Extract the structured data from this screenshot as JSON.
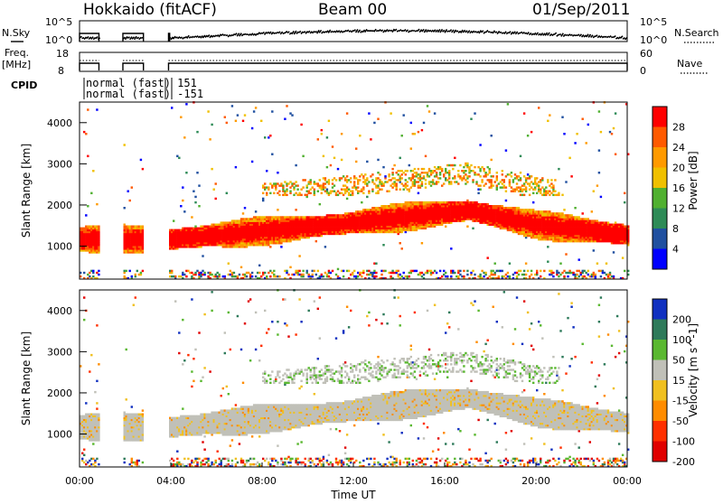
{
  "header": {
    "station": "Hokkaido (fitACF)",
    "beam": "Beam 00",
    "date": "01/Sep/2011"
  },
  "panels": {
    "nsky": {
      "left_label": "N.Sky",
      "right_label": "N.Search",
      "left_ticks": [
        "10^5",
        "10^0"
      ],
      "right_ticks": [
        "10^5",
        "10^0"
      ]
    },
    "freq": {
      "left_label_1": "Freq.",
      "left_label_2": "[MHz]",
      "right_label": "Nave",
      "left_ticks": [
        "18",
        "8"
      ],
      "right_ticks": [
        "60",
        "0"
      ]
    },
    "cpid": {
      "label": "CPID",
      "line1": "normal (fast) 151",
      "line2": "normal (fast) -151"
    }
  },
  "x_axis": {
    "label": "Time UT",
    "ticks": [
      "00:00",
      "04:00",
      "08:00",
      "12:00",
      "16:00",
      "20:00",
      "00:00"
    ]
  },
  "chart_data": [
    {
      "type": "heatmap",
      "name": "power",
      "ylabel": "Slant Range [km]",
      "yticks": [
        "1000",
        "2000",
        "3000",
        "4000"
      ],
      "ylim": [
        200,
        4500
      ],
      "xlim_hours": [
        0,
        24
      ],
      "colorbar_label": "Power [dB]",
      "colorbar_ticks": [
        "28",
        "24",
        "20",
        "16",
        "12",
        "8",
        "4"
      ],
      "colorbar_colors": [
        "#ff0000",
        "#ff5a00",
        "#ff9a00",
        "#f0c000",
        "#50b030",
        "#2e8b57",
        "#2050a0",
        "#0000ff"
      ],
      "gaps_hours": [
        [
          0.85,
          1.9
        ],
        [
          2.8,
          3.9
        ]
      ],
      "main_band_center_km": [
        1150,
        1150,
        1350,
        1550,
        1800,
        1850,
        1500,
        1250
      ],
      "main_band_hours": [
        0,
        4,
        8,
        12,
        16,
        17,
        20,
        24
      ]
    },
    {
      "type": "heatmap",
      "name": "velocity",
      "ylabel": "Slant Range [km]",
      "yticks": [
        "1000",
        "2000",
        "3000",
        "4000"
      ],
      "ylim": [
        200,
        4500
      ],
      "xlim_hours": [
        0,
        24
      ],
      "colorbar_label": "Velocity [m s^-1]",
      "colorbar_ticks": [
        "200",
        "100",
        "50",
        "15",
        "-15",
        "-50",
        "-100",
        "-200"
      ],
      "colorbar_colors": [
        "#1030c0",
        "#2e7a5a",
        "#5ab830",
        "#c0c0b8",
        "#f0c020",
        "#ff8c00",
        "#ff3000",
        "#e00000"
      ],
      "gaps_hours": [
        [
          0.85,
          1.9
        ],
        [
          2.8,
          3.9
        ]
      ]
    }
  ]
}
